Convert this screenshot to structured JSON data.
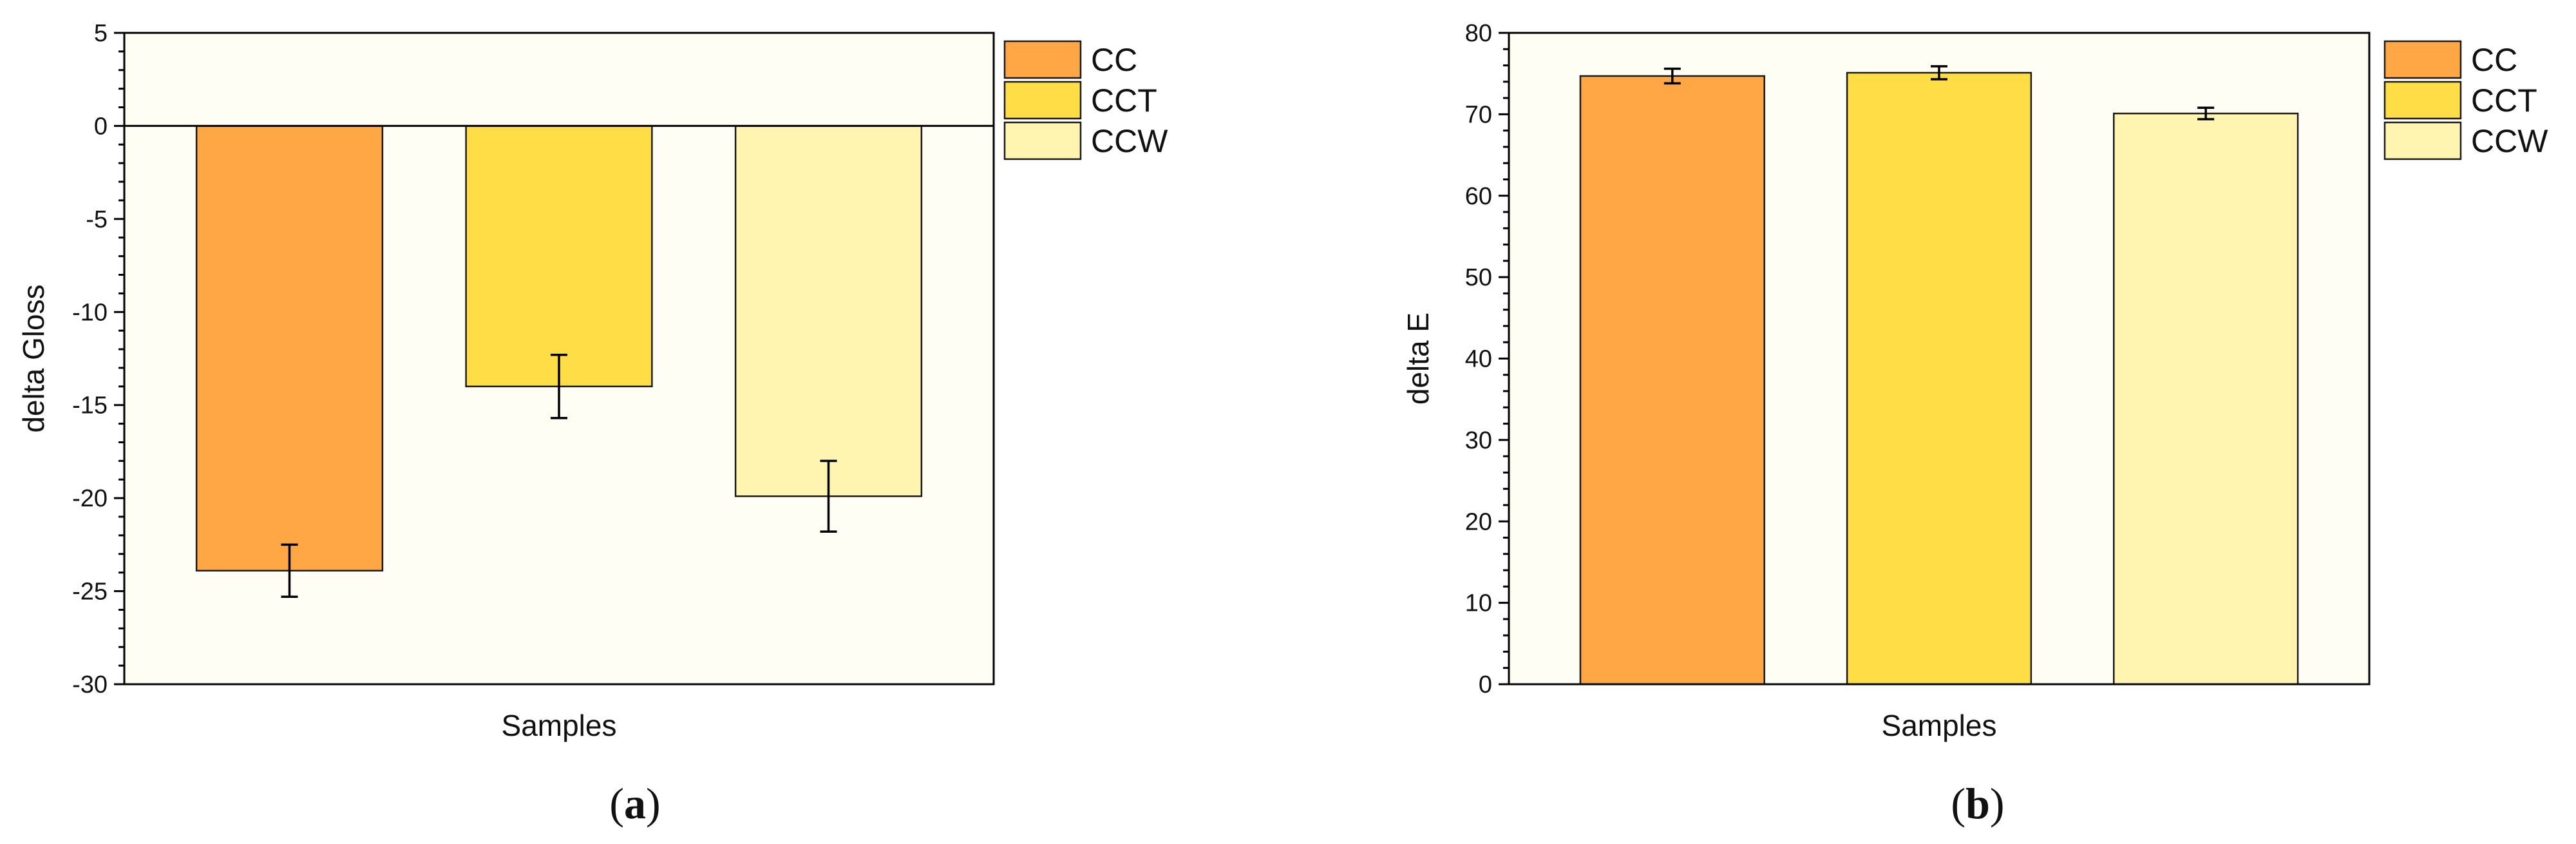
{
  "colors": {
    "CC": "#FFA745",
    "CCT": "#FFDD47",
    "CCW": "#FFF5B0",
    "plot_bg": "#FFFEF5",
    "axis": "#000000"
  },
  "chart_data": [
    {
      "type": "bar",
      "panel_label": {
        "open": "(",
        "letter": "a",
        "close": ")"
      },
      "title": "",
      "xlabel": "Samples",
      "ylabel": "delta Gloss",
      "ylim": [
        -30,
        5
      ],
      "yticks": [
        5,
        0,
        -5,
        -10,
        -15,
        -20,
        -25,
        -30
      ],
      "grid": false,
      "zero_line": true,
      "legend_position": "right",
      "series": [
        {
          "name": "CC",
          "value": -23.9,
          "error": 1.4
        },
        {
          "name": "CCT",
          "value": -14.0,
          "error": 1.7
        },
        {
          "name": "CCW",
          "value": -19.9,
          "error": 1.9
        }
      ]
    },
    {
      "type": "bar",
      "panel_label": {
        "open": "(",
        "letter": "b",
        "close": ")"
      },
      "title": "",
      "xlabel": "Samples",
      "ylabel": "delta E",
      "ylim": [
        0,
        80
      ],
      "yticks": [
        80,
        70,
        60,
        50,
        40,
        30,
        20,
        10,
        0
      ],
      "grid": false,
      "zero_line": false,
      "legend_position": "right",
      "series": [
        {
          "name": "CC",
          "value": 74.7,
          "error": 0.9
        },
        {
          "name": "CCT",
          "value": 75.1,
          "error": 0.8
        },
        {
          "name": "CCW",
          "value": 70.1,
          "error": 0.7
        }
      ]
    }
  ]
}
